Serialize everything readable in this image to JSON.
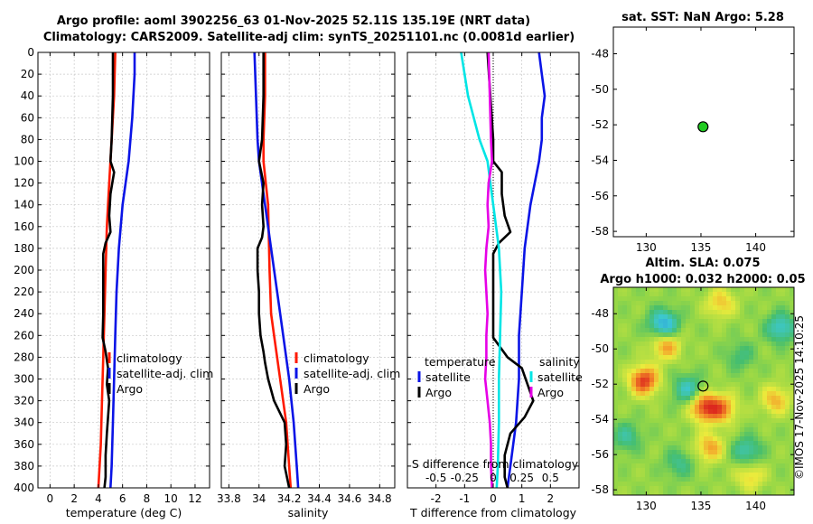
{
  "title_line1": "Argo profile: aoml 3902256_63 01-Nov-2025 52.11S 135.19E (NRT data)",
  "title_line2": "Climatology: CARS2009. Satellite-adj clim: synTS_20251101.nc (0.0081d earlier)",
  "watermark": "©IMOS 17-Nov-2025 14:10:25",
  "colors": {
    "climatology": "#ff1a00",
    "satellite": "#0a14e6",
    "argo": "#000000",
    "sat_salinity": "#00e5e5",
    "argo_salinity_diff": "#e600e6"
  },
  "chart_data": [
    {
      "name": "temperature-profile",
      "type": "line",
      "xlabel": "temperature (deg C)",
      "ylabel": "",
      "xlim": [
        -1,
        13.2
      ],
      "ylim": [
        400,
        0
      ],
      "xticks": [
        0,
        2,
        4,
        6,
        8,
        10,
        12
      ],
      "yticks": [
        0,
        20,
        40,
        60,
        80,
        100,
        120,
        140,
        160,
        180,
        200,
        220,
        240,
        260,
        280,
        300,
        320,
        340,
        360,
        380,
        400
      ],
      "legend": [
        "climatology",
        "satellite-adj. clim",
        "Argo"
      ],
      "series": [
        {
          "name": "climatology",
          "color": "#ff1a00",
          "depth": [
            0,
            40,
            80,
            120,
            160,
            200,
            240,
            280,
            320,
            360,
            400
          ],
          "values": [
            5.4,
            5.3,
            5.1,
            4.9,
            4.7,
            4.6,
            4.5,
            4.4,
            4.3,
            4.2,
            4.0
          ]
        },
        {
          "name": "satellite-adj. clim",
          "color": "#0a14e6",
          "depth": [
            0,
            20,
            60,
            100,
            140,
            180,
            220,
            260,
            300,
            340,
            380,
            400
          ],
          "values": [
            7.0,
            7.0,
            6.8,
            6.5,
            6.0,
            5.7,
            5.5,
            5.4,
            5.3,
            5.2,
            5.1,
            5.0
          ]
        },
        {
          "name": "Argo",
          "color": "#000000",
          "depth": [
            0,
            40,
            80,
            100,
            110,
            130,
            150,
            165,
            175,
            185,
            200,
            240,
            262,
            275,
            290,
            305,
            320,
            335,
            350,
            370,
            390,
            400
          ],
          "values": [
            5.2,
            5.2,
            5.1,
            5.0,
            5.3,
            5.0,
            4.9,
            5.0,
            4.6,
            4.4,
            4.4,
            4.4,
            4.35,
            4.6,
            4.8,
            4.7,
            4.9,
            4.8,
            4.7,
            4.6,
            4.6,
            4.5
          ]
        }
      ]
    },
    {
      "name": "salinity-profile",
      "type": "line",
      "xlabel": "salinity",
      "ylabel": "",
      "xlim": [
        33.75,
        34.9
      ],
      "ylim": [
        400,
        0
      ],
      "xticks": [
        33.8,
        34,
        34.2,
        34.4,
        34.6,
        34.8
      ],
      "xticklabels": [
        "33.8",
        "34",
        "34.2",
        "34.4",
        "34.6",
        "34.8"
      ],
      "legend": [
        "climatology",
        "satellite-adj. clim",
        "Argo"
      ],
      "series": [
        {
          "name": "climatology",
          "color": "#ff1a00",
          "depth": [
            0,
            40,
            80,
            100,
            140,
            200,
            240,
            260,
            300,
            340,
            380,
            400
          ],
          "values": [
            34.04,
            34.04,
            34.03,
            34.03,
            34.06,
            34.07,
            34.08,
            34.1,
            34.14,
            34.18,
            34.2,
            34.21
          ]
        },
        {
          "name": "satellite-adj. clim",
          "color": "#0a14e6",
          "depth": [
            0,
            40,
            80,
            100,
            140,
            180,
            220,
            260,
            300,
            340,
            380,
            400
          ],
          "values": [
            33.97,
            33.98,
            33.99,
            34.0,
            34.04,
            34.08,
            34.12,
            34.16,
            34.2,
            34.23,
            34.25,
            34.26
          ]
        },
        {
          "name": "Argo",
          "color": "#000000",
          "depth": [
            0,
            40,
            80,
            100,
            120,
            140,
            160,
            170,
            180,
            200,
            220,
            240,
            260,
            275,
            285,
            300,
            320,
            340,
            360,
            380,
            400
          ],
          "values": [
            34.03,
            34.03,
            34.02,
            34.0,
            34.03,
            34.02,
            34.03,
            34.02,
            33.99,
            33.99,
            34.0,
            34.0,
            34.01,
            34.03,
            34.04,
            34.06,
            34.1,
            34.17,
            34.18,
            34.17,
            34.2
          ]
        }
      ]
    },
    {
      "name": "difference-profile",
      "type": "line",
      "xlabel": "T difference from climatology",
      "ylabel": "",
      "top_axis_label": "S difference from climatology",
      "xlim": [
        -3,
        3
      ],
      "ylim": [
        400,
        0
      ],
      "xticks": [
        -2,
        -1,
        0,
        1,
        2
      ],
      "top_ticks": [
        -0.5,
        -0.25,
        0,
        0.25,
        0.5
      ],
      "top_ticklabels": [
        "-0.5",
        "-0.25",
        "0",
        "0.25",
        "0.5"
      ],
      "legend_left_title": "temperature",
      "legend_right_title": "salinity",
      "legend_left": [
        "satellite",
        "Argo"
      ],
      "legend_right": [
        "satellite",
        "Argo"
      ],
      "series": [
        {
          "name": "temperature satellite",
          "color": "#0a14e6",
          "depth": [
            0,
            20,
            40,
            60,
            80,
            100,
            140,
            180,
            220,
            260,
            300,
            340,
            380,
            400
          ],
          "values": [
            1.6,
            1.7,
            1.8,
            1.7,
            1.7,
            1.6,
            1.3,
            1.1,
            1.0,
            0.9,
            0.9,
            0.8,
            0.6,
            0.5
          ]
        },
        {
          "name": "temperature Argo",
          "color": "#000000",
          "depth": [
            0,
            40,
            80,
            100,
            110,
            130,
            150,
            165,
            175,
            185,
            200,
            240,
            262,
            280,
            290,
            305,
            320,
            335,
            350,
            370,
            390,
            400
          ],
          "values": [
            -0.2,
            -0.1,
            0.0,
            0.0,
            0.3,
            0.3,
            0.4,
            0.6,
            0.2,
            0.0,
            0.0,
            0.0,
            0.0,
            0.5,
            1.0,
            1.2,
            1.4,
            1.1,
            0.6,
            0.4,
            0.4,
            0.5
          ]
        },
        {
          "name": "salinity satellite",
          "color": "#00e5e5",
          "depth": [
            0,
            40,
            80,
            100,
            140,
            180,
            220,
            260,
            300,
            340,
            380,
            400
          ],
          "values": [
            -0.28,
            -0.22,
            -0.12,
            -0.05,
            0.0,
            0.05,
            0.07,
            0.06,
            0.05,
            0.05,
            0.04,
            0.03
          ]
        },
        {
          "name": "salinity Argo",
          "color": "#e600e6",
          "depth": [
            0,
            40,
            80,
            100,
            120,
            140,
            160,
            180,
            200,
            220,
            240,
            260,
            280,
            300,
            320,
            340,
            360,
            380,
            400
          ],
          "values": [
            -0.04,
            -0.03,
            -0.02,
            -0.01,
            -0.04,
            -0.05,
            -0.04,
            -0.06,
            -0.07,
            -0.06,
            -0.05,
            -0.06,
            -0.06,
            -0.07,
            -0.05,
            -0.03,
            -0.02,
            -0.02,
            -0.01
          ]
        }
      ]
    },
    {
      "name": "sst-location-map",
      "type": "scatter",
      "title": "sat. SST: NaN Argo: 5.28",
      "xlim": [
        127,
        143.5
      ],
      "ylim": [
        -58.3,
        -46.5
      ],
      "xticks": [
        130,
        135,
        140
      ],
      "yticks": [
        -48,
        -50,
        -52,
        -54,
        -56,
        -58
      ],
      "point": {
        "lon": 135.19,
        "lat": -52.11,
        "color": "#22cc22"
      }
    },
    {
      "name": "sla-map",
      "type": "heatmap",
      "title_line1": "Altim. SLA: 0.075",
      "title_line2": "Argo h1000: 0.032 h2000: 0.05",
      "xlim": [
        127,
        143.5
      ],
      "ylim": [
        -58.3,
        -46.5
      ],
      "xticks": [
        130,
        135,
        140
      ],
      "yticks": [
        -48,
        -50,
        -52,
        -54,
        -56,
        -58
      ],
      "point": {
        "lon": 135.19,
        "lat": -52.11
      },
      "blobs": [
        {
          "lon": 129.8,
          "lat": -51.8,
          "v": 0.9
        },
        {
          "lon": 131.8,
          "lat": -49.8,
          "v": 0.6
        },
        {
          "lon": 135.3,
          "lat": -53.3,
          "v": 0.85
        },
        {
          "lon": 137.0,
          "lat": -53.4,
          "v": 0.6
        },
        {
          "lon": 135.8,
          "lat": -55.6,
          "v": 0.55
        },
        {
          "lon": 141.8,
          "lat": -52.9,
          "v": 0.5
        },
        {
          "lon": 136.8,
          "lat": -47.4,
          "v": 0.45
        },
        {
          "lon": 139.5,
          "lat": -57.2,
          "v": 0.4
        },
        {
          "lon": 131.6,
          "lat": -48.6,
          "v": -0.8
        },
        {
          "lon": 133.8,
          "lat": -52.3,
          "v": -0.55
        },
        {
          "lon": 142.3,
          "lat": -48.8,
          "v": -0.6
        },
        {
          "lon": 139.2,
          "lat": -55.8,
          "v": -0.5
        },
        {
          "lon": 128.2,
          "lat": -55.0,
          "v": -0.4
        },
        {
          "lon": 133.0,
          "lat": -56.5,
          "v": -0.35
        },
        {
          "lon": 138.6,
          "lat": -50.4,
          "v": -0.3
        }
      ]
    }
  ]
}
